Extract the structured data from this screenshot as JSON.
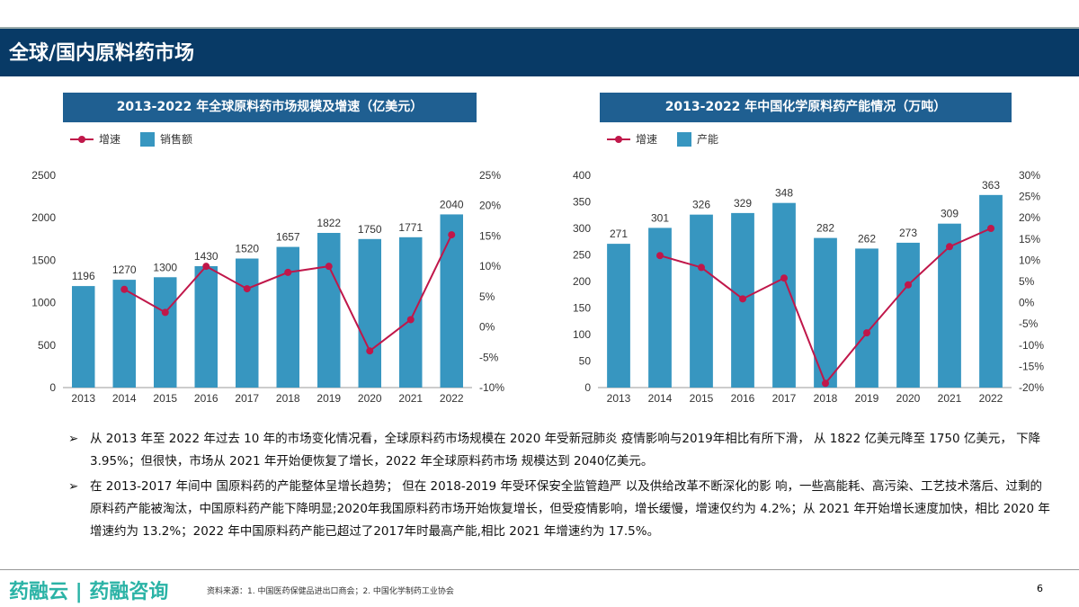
{
  "header": {
    "title": "全球/国内原料药市场"
  },
  "chart_data": [
    {
      "type": "bar",
      "title": "2013-2022 年全球原料药市场规模及增速（亿美元）",
      "categories": [
        "2013",
        "2014",
        "2015",
        "2016",
        "2017",
        "2018",
        "2019",
        "2020",
        "2021",
        "2022"
      ],
      "series": [
        {
          "name": "销售额",
          "type": "bar",
          "axis": "left",
          "values": [
            1196,
            1270,
            1300,
            1430,
            1520,
            1657,
            1822,
            1750,
            1771,
            2040
          ]
        },
        {
          "name": "增速",
          "type": "line",
          "axis": "right",
          "values": [
            null,
            6.2,
            2.4,
            10.0,
            6.3,
            9.0,
            10.0,
            -3.95,
            1.2,
            15.2
          ]
        }
      ],
      "ylim_left": [
        0,
        2500
      ],
      "yticks_left": [
        0,
        500,
        1000,
        1500,
        2000,
        2500
      ],
      "ylim_right": [
        -10,
        25
      ],
      "yticks_right": [
        "-10%",
        "-5%",
        "0%",
        "5%",
        "10%",
        "15%",
        "20%",
        "25%"
      ],
      "legend": "top-left",
      "grid": false,
      "colors": {
        "bar": "#3796c0",
        "line": "#c0174a"
      }
    },
    {
      "type": "bar",
      "title": "2013-2022 年中国化学原料药产能情况（万吨）",
      "categories": [
        "2013",
        "2014",
        "2015",
        "2016",
        "2017",
        "2018",
        "2019",
        "2020",
        "2021",
        "2022"
      ],
      "series": [
        {
          "name": "产能",
          "type": "bar",
          "axis": "left",
          "values": [
            271,
            301,
            326,
            329,
            348,
            282,
            262,
            273,
            309,
            363
          ]
        },
        {
          "name": "增速",
          "type": "line",
          "axis": "right",
          "values": [
            null,
            11.1,
            8.3,
            0.9,
            5.8,
            -19.0,
            -7.1,
            4.2,
            13.2,
            17.5
          ]
        }
      ],
      "ylim_left": [
        0,
        400
      ],
      "yticks_left": [
        0,
        50,
        100,
        150,
        200,
        250,
        300,
        350,
        400
      ],
      "ylim_right": [
        -20,
        30
      ],
      "yticks_right": [
        "-20%",
        "-15%",
        "-10%",
        "-5%",
        "0%",
        "5%",
        "10%",
        "15%",
        "20%",
        "25%",
        "30%"
      ],
      "legend": "top-left",
      "grid": false,
      "colors": {
        "bar": "#3796c0",
        "line": "#c0174a"
      }
    }
  ],
  "bullets": [
    "从 2013 年至 2022 年过去 10 年的市场变化情况看，全球原料药市场规模在 2020 年受新冠肺炎 疫情影响与2019年相比有所下滑， 从 1822 亿美元降至 1750 亿美元， 下降 3.95%；但很快，市场从 2021 年开始便恢复了增长，2022 年全球原料药市场 规模达到 2040亿美元。",
    "在 2013-2017 年间中 国原料药的产能整体呈增长趋势； 但在 2018-2019 年受环保安全监管趋严 以及供给改革不断深化的影 响，一些高能耗、高污染、工艺技术落后、过剩的原料药产能被淘汰，中国原料药产能下降明显;2020年我国原料药市场开始恢复增长，但受疫情影响，增长缓慢，增速仅约为 4.2%；从 2021 年开始增长速度加快，相比 2020 年增速约为 13.2%；2022 年中国原料药产能已超过了2017年时最高产能,相比 2021 年增速约为 17.5%。"
  ],
  "footer": {
    "logo": "药融云 | 药融咨询",
    "source": "资料来源：1. 中国医药保健品进出口商会；2. 中国化学制药工业协会",
    "page": "6"
  }
}
